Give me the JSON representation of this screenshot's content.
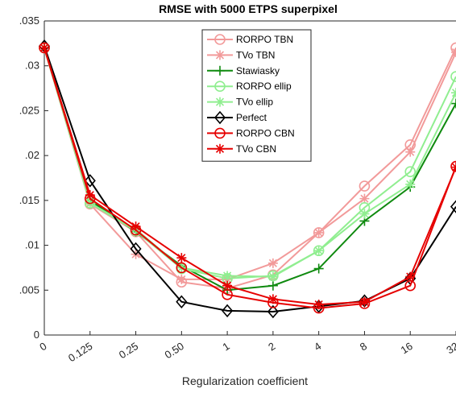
{
  "chart_data": {
    "type": "line",
    "title": "RMSE with 5000 ETPS superpixel",
    "xlabel": "Regularization coefficient",
    "ylabel": "",
    "categories": [
      "0",
      "0.125",
      "0.25",
      "0.50",
      "1",
      "2",
      "4",
      "8",
      "16",
      "32"
    ],
    "ylim": [
      0,
      0.035
    ],
    "yticks": [
      0,
      0.005,
      0.01,
      0.015,
      0.02,
      0.025,
      0.03,
      0.035
    ],
    "ytick_labels": [
      "0",
      ".005",
      ".01",
      ".015",
      ".02",
      ".025",
      ".03",
      ".035"
    ],
    "grid": false,
    "legend_position": "top-center",
    "series": [
      {
        "name": "RORPO TBN",
        "color": "#f29a9a",
        "marker": "circle",
        "values": [
          0.032,
          0.0146,
          0.0115,
          0.0059,
          0.0052,
          0.0067,
          0.0114,
          0.0166,
          0.0212,
          0.032
        ]
      },
      {
        "name": "TVo TBN",
        "color": "#f29a9a",
        "marker": "asterisk",
        "values": [
          0.032,
          0.0146,
          0.009,
          0.0062,
          0.0062,
          0.008,
          0.0114,
          0.0152,
          0.0204,
          0.0315
        ]
      },
      {
        "name": "Stawiasky",
        "color": "#0f8a0f",
        "marker": "plus",
        "values": [
          0.032,
          0.015,
          0.0115,
          0.0077,
          0.005,
          0.0055,
          0.0074,
          0.0127,
          0.0165,
          0.0258
        ]
      },
      {
        "name": "RORPO ellip",
        "color": "#90ee90",
        "marker": "circle",
        "values": [
          0.032,
          0.0147,
          0.0116,
          0.0074,
          0.0063,
          0.0066,
          0.0094,
          0.0142,
          0.0182,
          0.0288
        ]
      },
      {
        "name": "TVo ellip",
        "color": "#90ee90",
        "marker": "asterisk",
        "values": [
          0.032,
          0.0147,
          0.0118,
          0.0075,
          0.0066,
          0.0065,
          0.0094,
          0.0135,
          0.0168,
          0.027
        ]
      },
      {
        "name": "Perfect",
        "color": "#000000",
        "marker": "diamond",
        "values": [
          0.0322,
          0.0172,
          0.0096,
          0.0037,
          0.0027,
          0.0026,
          0.0032,
          0.0038,
          0.0063,
          0.0143
        ]
      },
      {
        "name": "RORPO CBN",
        "color": "#e60000",
        "marker": "circle",
        "values": [
          0.032,
          0.0152,
          0.0117,
          0.0075,
          0.0045,
          0.0036,
          0.003,
          0.0035,
          0.0055,
          0.0188
        ]
      },
      {
        "name": "TVo CBN",
        "color": "#e60000",
        "marker": "asterisk",
        "values": [
          0.032,
          0.0156,
          0.0121,
          0.0086,
          0.0055,
          0.004,
          0.0034,
          0.0037,
          0.0065,
          0.0187
        ]
      }
    ]
  }
}
